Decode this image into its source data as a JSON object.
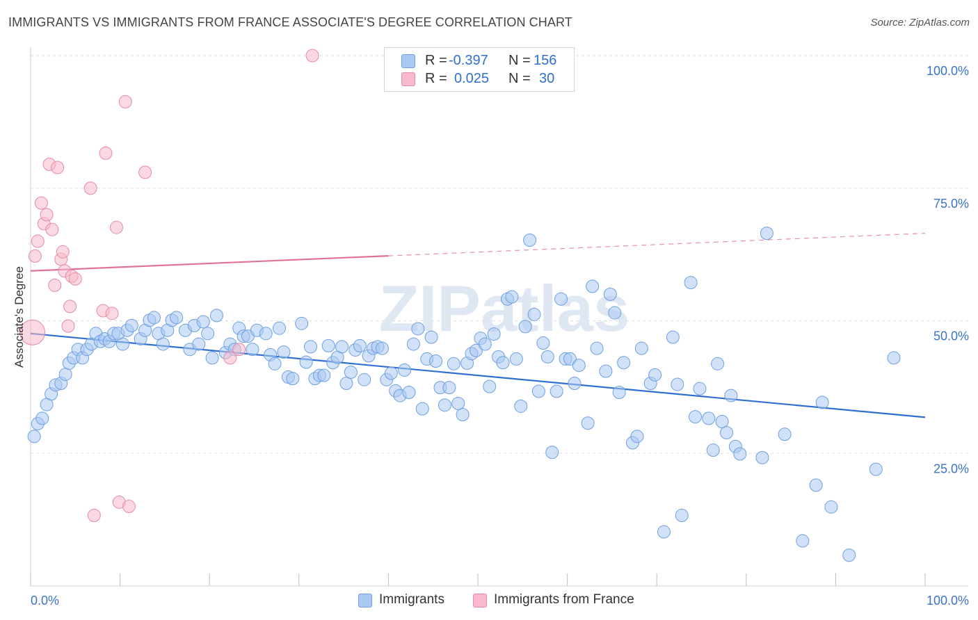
{
  "header": {
    "title": "IMMIGRANTS VS IMMIGRANTS FROM FRANCE ASSOCIATE'S DEGREE CORRELATION CHART",
    "source": "Source: ZipAtlas.com"
  },
  "watermark": "ZIPatlas",
  "legend": {
    "r_label": "R =",
    "n_label": "N =",
    "rows": [
      {
        "r": "-0.397",
        "n": "156",
        "color": "#a9c8f2",
        "border": "#6e9fe0"
      },
      {
        "r": "0.025",
        "n": "30",
        "color": "#f7b9cb",
        "border": "#e58aa6"
      }
    ]
  },
  "bottom_legend": [
    {
      "label": "Immigrants",
      "color": "#a9c8f2",
      "border": "#6e9fe0"
    },
    {
      "label": "Immigrants from France",
      "color": "#f7b9cb",
      "border": "#e58aa6"
    }
  ],
  "chart_data": {
    "type": "scatter",
    "ylabel": "Associate's Degree",
    "xlim": [
      0,
      100
    ],
    "ylim": [
      0,
      100
    ],
    "x_tick_labels": [
      "0.0%",
      "100.0%"
    ],
    "y_ticks": [
      25,
      50,
      75,
      100
    ],
    "y_tick_labels": [
      "25.0%",
      "50.0%",
      "75.0%",
      "100.0%"
    ],
    "grid": true,
    "colors": {
      "blue_fill": "#a9c8f2",
      "blue_stroke": "#6e9fe0",
      "blue_line": "#2f6fd1",
      "pink_fill": "#f7b9cb",
      "pink_stroke": "#e58aa6",
      "pink_line": "#e0729a",
      "tick_label": "#3b73c9"
    },
    "series": [
      {
        "name": "Immigrants",
        "trend": {
          "x0": 0,
          "y0": 47.6,
          "x1": 100,
          "y1": 31.8,
          "dashed_from": null
        },
        "points": [
          [
            0.4,
            28.2
          ],
          [
            0.8,
            30.6
          ],
          [
            1.3,
            31.6
          ],
          [
            1.8,
            34.2
          ],
          [
            2.3,
            36.2
          ],
          [
            2.8,
            37.9
          ],
          [
            3.4,
            38.2
          ],
          [
            3.9,
            39.9
          ],
          [
            4.3,
            42.0
          ],
          [
            4.8,
            43.0
          ],
          [
            5.3,
            44.6
          ],
          [
            5.8,
            43.0
          ],
          [
            6.3,
            44.6
          ],
          [
            6.8,
            45.6
          ],
          [
            7.3,
            47.6
          ],
          [
            7.8,
            46.1
          ],
          [
            8.3,
            46.6
          ],
          [
            8.8,
            46.1
          ],
          [
            9.3,
            47.6
          ],
          [
            9.8,
            47.6
          ],
          [
            10.3,
            45.6
          ],
          [
            10.8,
            48.2
          ],
          [
            11.3,
            49.1
          ],
          [
            12.3,
            46.6
          ],
          [
            12.8,
            48.2
          ],
          [
            13.3,
            50.1
          ],
          [
            13.8,
            50.6
          ],
          [
            14.3,
            47.6
          ],
          [
            14.8,
            45.6
          ],
          [
            15.3,
            48.2
          ],
          [
            15.8,
            50.1
          ],
          [
            16.3,
            50.6
          ],
          [
            17.3,
            48.2
          ],
          [
            17.8,
            44.6
          ],
          [
            18.3,
            49.1
          ],
          [
            18.8,
            45.6
          ],
          [
            19.3,
            49.8
          ],
          [
            19.8,
            47.6
          ],
          [
            20.3,
            43.0
          ],
          [
            20.8,
            51.0
          ],
          [
            21.8,
            44.0
          ],
          [
            22.3,
            45.6
          ],
          [
            22.8,
            44.6
          ],
          [
            23.3,
            48.6
          ],
          [
            23.8,
            47.1
          ],
          [
            24.3,
            47.1
          ],
          [
            24.8,
            44.6
          ],
          [
            25.3,
            48.2
          ],
          [
            26.3,
            47.6
          ],
          [
            26.8,
            43.6
          ],
          [
            27.3,
            41.9
          ],
          [
            27.8,
            48.6
          ],
          [
            28.3,
            44.1
          ],
          [
            28.8,
            39.4
          ],
          [
            29.3,
            39.1
          ],
          [
            30.3,
            49.5
          ],
          [
            30.8,
            42.2
          ],
          [
            31.3,
            45.1
          ],
          [
            31.8,
            39.1
          ],
          [
            32.3,
            39.7
          ],
          [
            32.8,
            39.7
          ],
          [
            33.3,
            45.3
          ],
          [
            33.8,
            42.1
          ],
          [
            34.3,
            43.1
          ],
          [
            34.8,
            45.1
          ],
          [
            35.3,
            38.2
          ],
          [
            35.8,
            40.3
          ],
          [
            36.3,
            44.5
          ],
          [
            36.8,
            45.3
          ],
          [
            37.3,
            38.9
          ],
          [
            37.8,
            43.4
          ],
          [
            38.3,
            44.8
          ],
          [
            38.8,
            45.1
          ],
          [
            39.3,
            44.8
          ],
          [
            39.8,
            38.9
          ],
          [
            40.3,
            40.1
          ],
          [
            40.8,
            36.8
          ],
          [
            41.3,
            35.9
          ],
          [
            41.8,
            40.7
          ],
          [
            42.3,
            36.5
          ],
          [
            42.8,
            45.6
          ],
          [
            43.3,
            48.5
          ],
          [
            43.8,
            33.4
          ],
          [
            44.3,
            42.8
          ],
          [
            44.8,
            46.9
          ],
          [
            45.3,
            42.4
          ],
          [
            45.8,
            37.4
          ],
          [
            46.3,
            34.1
          ],
          [
            46.8,
            37.4
          ],
          [
            47.3,
            41.9
          ],
          [
            47.8,
            34.4
          ],
          [
            48.3,
            32.3
          ],
          [
            48.8,
            42.0
          ],
          [
            49.3,
            43.8
          ],
          [
            49.8,
            44.4
          ],
          [
            50.3,
            46.7
          ],
          [
            50.8,
            45.6
          ],
          [
            51.3,
            37.6
          ],
          [
            51.8,
            47.5
          ],
          [
            52.3,
            43.2
          ],
          [
            52.8,
            42.1
          ],
          [
            53.3,
            54.1
          ],
          [
            53.8,
            54.5
          ],
          [
            54.3,
            42.8
          ],
          [
            54.8,
            33.9
          ],
          [
            55.3,
            48.9
          ],
          [
            55.8,
            65.2
          ],
          [
            56.3,
            51.2
          ],
          [
            56.8,
            36.7
          ],
          [
            57.3,
            45.8
          ],
          [
            57.8,
            43.2
          ],
          [
            58.3,
            25.2
          ],
          [
            58.8,
            36.7
          ],
          [
            59.3,
            54.1
          ],
          [
            59.8,
            42.8
          ],
          [
            60.3,
            42.8
          ],
          [
            60.8,
            38.2
          ],
          [
            61.3,
            41.6
          ],
          [
            62.3,
            30.7
          ],
          [
            62.8,
            56.5
          ],
          [
            63.3,
            44.8
          ],
          [
            64.3,
            40.5
          ],
          [
            64.8,
            55.0
          ],
          [
            65.3,
            51.5
          ],
          [
            65.8,
            36.5
          ],
          [
            66.3,
            42.1
          ],
          [
            67.3,
            27.0
          ],
          [
            67.8,
            28.2
          ],
          [
            68.3,
            44.8
          ],
          [
            69.3,
            38.2
          ],
          [
            69.8,
            39.8
          ],
          [
            70.8,
            10.2
          ],
          [
            71.8,
            46.9
          ],
          [
            72.3,
            38.0
          ],
          [
            72.8,
            13.3
          ],
          [
            73.8,
            57.2
          ],
          [
            74.3,
            31.9
          ],
          [
            74.8,
            37.2
          ],
          [
            75.8,
            31.6
          ],
          [
            76.3,
            25.6
          ],
          [
            76.8,
            41.9
          ],
          [
            77.3,
            31.0
          ],
          [
            77.8,
            28.9
          ],
          [
            78.3,
            35.9
          ],
          [
            78.8,
            26.3
          ],
          [
            79.3,
            24.9
          ],
          [
            81.8,
            24.2
          ],
          [
            82.3,
            66.5
          ],
          [
            84.3,
            28.6
          ],
          [
            86.3,
            8.5
          ],
          [
            87.8,
            19.0
          ],
          [
            88.5,
            34.6
          ],
          [
            89.5,
            14.9
          ],
          [
            91.5,
            5.8
          ],
          [
            96.5,
            43.0
          ],
          [
            94.5,
            22.0
          ]
        ]
      },
      {
        "name": "Immigrants from France",
        "trend": {
          "x0": 0,
          "y0": 59.4,
          "x1": 100,
          "y1": 66.5,
          "dashed_from": 40
        },
        "points": [
          [
            0.2,
            47.8
          ],
          [
            0.5,
            62.2
          ],
          [
            0.8,
            65.0
          ],
          [
            1.2,
            72.2
          ],
          [
            1.5,
            68.3
          ],
          [
            1.8,
            70.0
          ],
          [
            2.1,
            79.5
          ],
          [
            2.4,
            67.2
          ],
          [
            2.7,
            56.7
          ],
          [
            3.0,
            78.9
          ],
          [
            3.4,
            61.6
          ],
          [
            3.6,
            63.0
          ],
          [
            3.8,
            59.4
          ],
          [
            4.2,
            49.0
          ],
          [
            4.4,
            52.7
          ],
          [
            4.6,
            58.4
          ],
          [
            5.0,
            57.9
          ],
          [
            6.7,
            75.0
          ],
          [
            7.1,
            13.3
          ],
          [
            8.1,
            51.9
          ],
          [
            8.4,
            81.6
          ],
          [
            9.1,
            51.4
          ],
          [
            9.6,
            67.6
          ],
          [
            9.9,
            15.8
          ],
          [
            10.6,
            91.3
          ],
          [
            11.0,
            15.0
          ],
          [
            12.8,
            78.0
          ],
          [
            22.3,
            43.0
          ],
          [
            23.3,
            44.6
          ],
          [
            31.5,
            100.0
          ]
        ]
      }
    ]
  }
}
